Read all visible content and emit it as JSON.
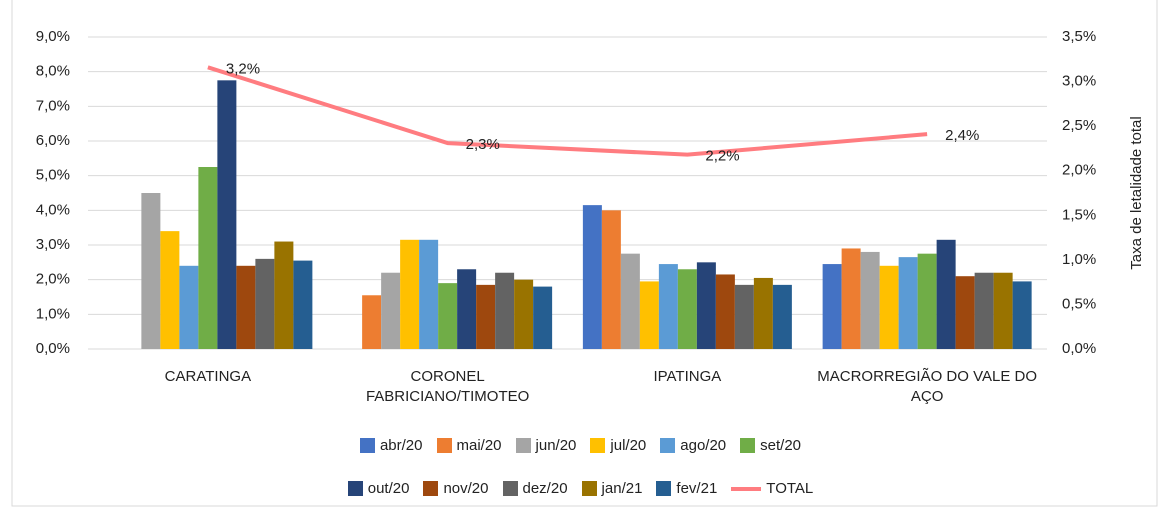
{
  "chart_data": {
    "type": "bar",
    "categories": [
      "CARATINGA",
      "CORONEL FABRICIANO/TIMOTEO",
      "IPATINGA",
      "MACRORREGIÃO DO VALE DO AÇO"
    ],
    "y2_label": "Taxa de letalidade total",
    "ylim": [
      0,
      9
    ],
    "yticks": [
      {
        "value": 0,
        "label": "0,0%"
      },
      {
        "value": 1,
        "label": "1,0%"
      },
      {
        "value": 2,
        "label": "2,0%"
      },
      {
        "value": 3,
        "label": "3,0%"
      },
      {
        "value": 4,
        "label": "4,0%"
      },
      {
        "value": 5,
        "label": "5,0%"
      },
      {
        "value": 6,
        "label": "6,0%"
      },
      {
        "value": 7,
        "label": "7,0%"
      },
      {
        "value": 8,
        "label": "8,0%"
      },
      {
        "value": 9,
        "label": "9,0%"
      }
    ],
    "y2lim": [
      0,
      3.5
    ],
    "y2ticks": [
      {
        "value": 0,
        "label": "0,0%"
      },
      {
        "value": 0.5,
        "label": "0,5%"
      },
      {
        "value": 1,
        "label": "1,0%"
      },
      {
        "value": 1.5,
        "label": "1,5%"
      },
      {
        "value": 2,
        "label": "2,0%"
      },
      {
        "value": 2.5,
        "label": "2,5%"
      },
      {
        "value": 3,
        "label": "3,0%"
      },
      {
        "value": 3.5,
        "label": "3,5%"
      }
    ],
    "grid": true,
    "legend": "bottom",
    "series": [
      {
        "name": "abr/20",
        "color": "#4472c4",
        "values": [
          null,
          null,
          4.15,
          2.45
        ]
      },
      {
        "name": "mai/20",
        "color": "#ed7d31",
        "values": [
          null,
          1.55,
          4.0,
          2.9
        ]
      },
      {
        "name": "jun/20",
        "color": "#a5a5a5",
        "values": [
          4.5,
          2.2,
          2.75,
          2.8
        ]
      },
      {
        "name": "jul/20",
        "color": "#ffc000",
        "values": [
          3.4,
          3.15,
          1.95,
          2.4
        ]
      },
      {
        "name": "ago/20",
        "color": "#5b9bd5",
        "values": [
          2.4,
          3.15,
          2.45,
          2.65
        ]
      },
      {
        "name": "set/20",
        "color": "#70ad47",
        "values": [
          5.25,
          1.9,
          2.3,
          2.75
        ]
      },
      {
        "name": "out/20",
        "color": "#264478",
        "values": [
          7.75,
          2.3,
          2.5,
          3.15
        ]
      },
      {
        "name": "nov/20",
        "color": "#9e480e",
        "values": [
          2.4,
          1.85,
          2.15,
          2.1
        ]
      },
      {
        "name": "dez/20",
        "color": "#636363",
        "values": [
          2.6,
          2.2,
          1.85,
          2.2
        ]
      },
      {
        "name": "jan/21",
        "color": "#997300",
        "values": [
          3.1,
          2.0,
          2.05,
          2.2
        ]
      },
      {
        "name": "fev/21",
        "color": "#255e91",
        "values": [
          2.55,
          1.8,
          1.85,
          1.95
        ]
      },
      {
        "name": "TOTAL",
        "color": "#ff7c80",
        "type": "line",
        "axis": "y2",
        "values": [
          3.16,
          2.31,
          2.18,
          2.41
        ],
        "value_labels": [
          "3,2%",
          "2,3%",
          "2,2%",
          "2,4%"
        ]
      }
    ]
  }
}
